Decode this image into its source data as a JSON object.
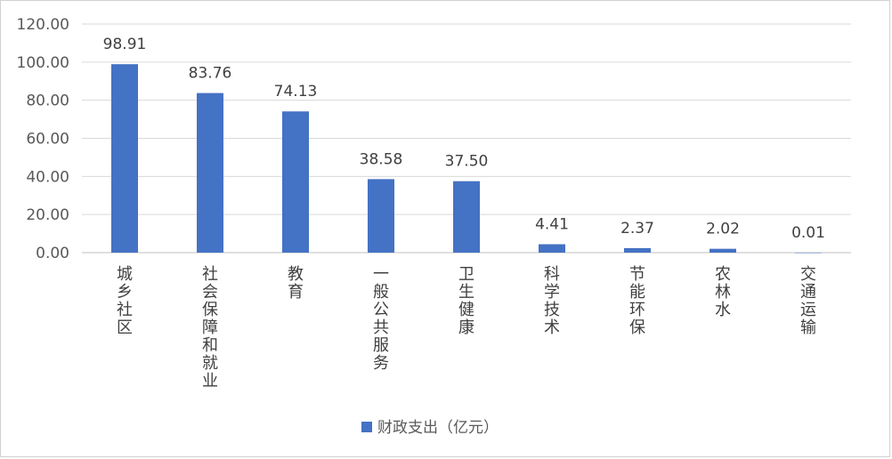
{
  "chart_data": {
    "type": "bar",
    "categories": [
      "城乡社区",
      "社会保障和就业",
      "教育",
      "一般公共服务",
      "卫生健康",
      "科学技术",
      "节能环保",
      "农林水",
      "交通运输"
    ],
    "series": [
      {
        "name": "财政支出（亿元）",
        "values": [
          98.91,
          83.76,
          74.13,
          38.58,
          37.5,
          4.41,
          2.37,
          2.02,
          0.01
        ]
      }
    ],
    "data_labels": [
      "98.91",
      "83.76",
      "74.13",
      "38.58",
      "37.50",
      "4.41",
      "2.37",
      "2.02",
      "0.01"
    ],
    "y_ticks": [
      "0.00",
      "20.00",
      "40.00",
      "60.00",
      "80.00",
      "100.00",
      "120.00"
    ],
    "ylim": [
      0,
      120
    ],
    "grid": true,
    "legend_position": "bottom",
    "colors": {
      "bar": "#4472C4",
      "grid": "#d9d9d9",
      "axis": "#bfbfbf"
    }
  }
}
